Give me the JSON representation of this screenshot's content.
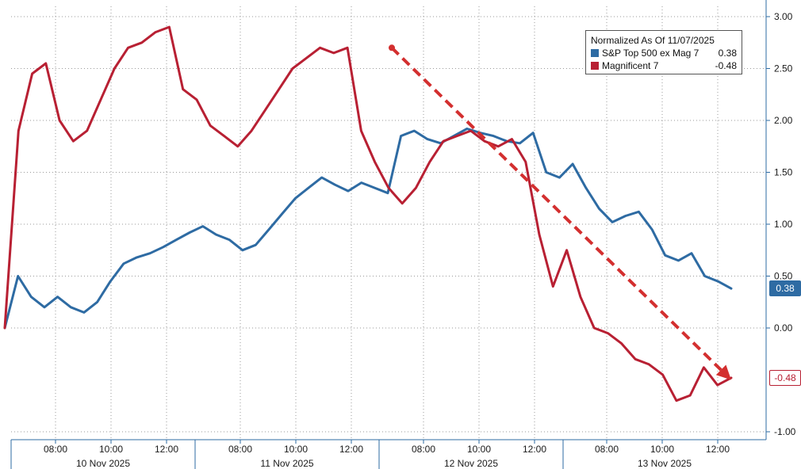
{
  "chart_data": {
    "type": "line",
    "legend": {
      "title": "Normalized As Of 11/07/2025",
      "position": "top-right"
    },
    "grid": true,
    "y_axis": {
      "side": "right",
      "ylim": [
        -1.0,
        3.0
      ],
      "ticks": [
        "3.00",
        "2.50",
        "2.00",
        "1.50",
        "1.00",
        "0.50",
        "0.00",
        "-1.00"
      ],
      "tick_values": [
        3.0,
        2.5,
        2.0,
        1.5,
        1.0,
        0.5,
        0.0,
        -1.0
      ]
    },
    "x_axis": {
      "hour_labels": [
        "08:00",
        "10:00",
        "12:00",
        "08:00",
        "10:00",
        "12:00",
        "08:00",
        "10:00",
        "12:00",
        "08:00",
        "10:00",
        "12:00"
      ],
      "day_labels": [
        "10 Nov 2025",
        "11 Nov 2025",
        "12 Nov 2025",
        "13 Nov 2025"
      ]
    },
    "series": [
      {
        "name": "S&P Top 500 ex Mag 7",
        "last_value_label": "0.38",
        "last_value": 0.38,
        "color": "#2e6ba3",
        "values": [
          0.0,
          0.5,
          0.3,
          0.2,
          0.3,
          0.2,
          0.15,
          0.25,
          0.45,
          0.62,
          0.68,
          0.72,
          0.78,
          0.85,
          0.92,
          0.98,
          0.9,
          0.85,
          0.75,
          0.8,
          0.95,
          1.1,
          1.25,
          1.35,
          1.45,
          1.38,
          1.32,
          1.4,
          1.35,
          1.3,
          1.85,
          1.9,
          1.82,
          1.78,
          1.85,
          1.92,
          1.88,
          1.85,
          1.8,
          1.78,
          1.88,
          1.5,
          1.45,
          1.58,
          1.35,
          1.15,
          1.02,
          1.08,
          1.12,
          0.95,
          0.7,
          0.65,
          0.72,
          0.5,
          0.45,
          0.38
        ]
      },
      {
        "name": "Magnificent 7",
        "last_value_label": "-0.48",
        "last_value": -0.48,
        "color": "#b82033",
        "values": [
          0.0,
          1.9,
          2.45,
          2.55,
          2.0,
          1.8,
          1.9,
          2.2,
          2.5,
          2.7,
          2.75,
          2.85,
          2.9,
          2.3,
          2.2,
          1.95,
          1.85,
          1.75,
          1.9,
          2.1,
          2.3,
          2.5,
          2.6,
          2.7,
          2.65,
          2.7,
          1.9,
          1.6,
          1.35,
          1.2,
          1.35,
          1.6,
          1.8,
          1.85,
          1.9,
          1.8,
          1.75,
          1.82,
          1.6,
          0.9,
          0.4,
          0.75,
          0.3,
          0.0,
          -0.05,
          -0.15,
          -0.3,
          -0.35,
          -0.45,
          -0.7,
          -0.65,
          -0.38,
          -0.55,
          -0.48
        ]
      }
    ],
    "annotation": {
      "type": "dashed-arrow",
      "color": "#d32f2f",
      "from_value": 2.7,
      "to_value": -0.5
    }
  }
}
